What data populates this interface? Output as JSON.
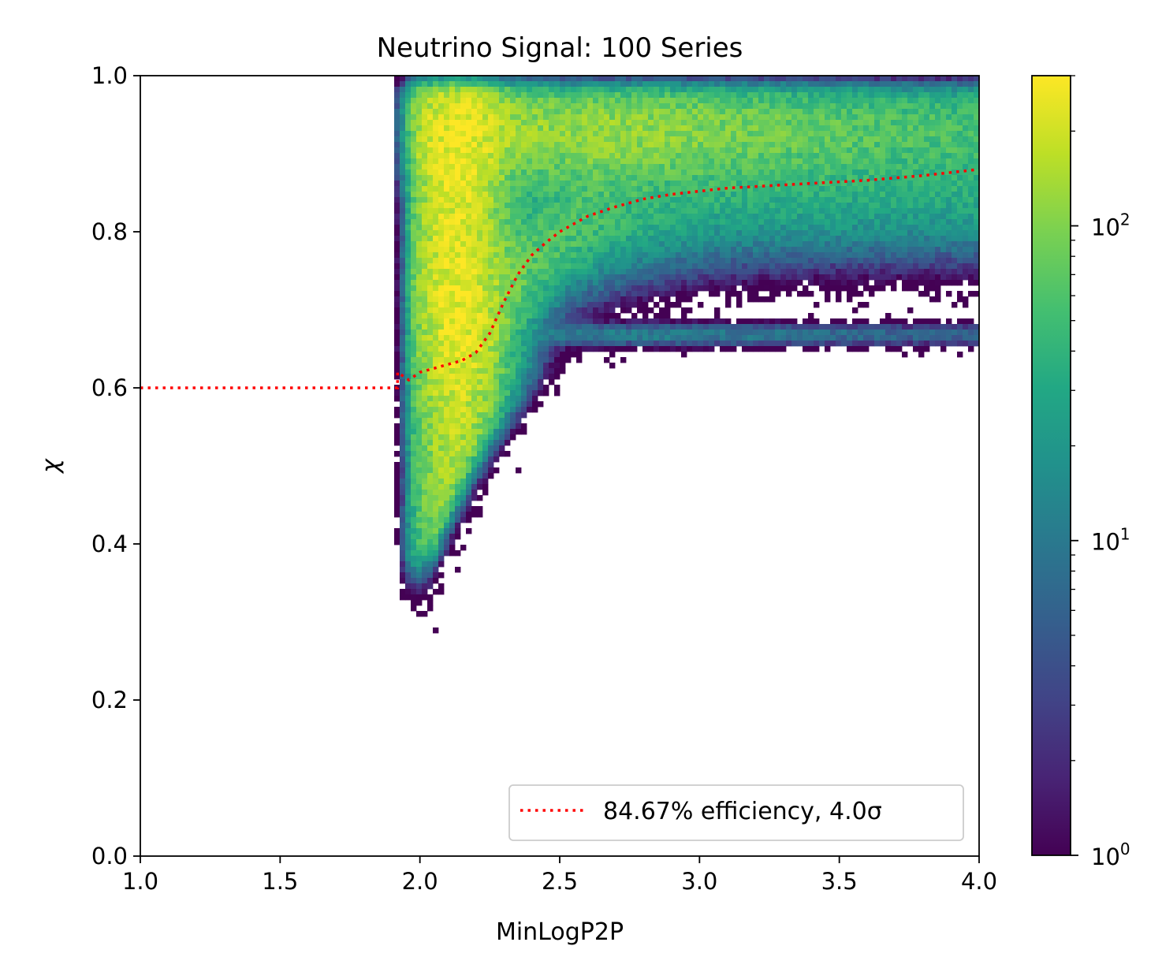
{
  "chart_data": {
    "type": "heatmap",
    "title": "Neutrino Signal: 100 Series",
    "xlabel": "MinLogP2P",
    "ylabel": "χ",
    "xlim": [
      1.0,
      4.0
    ],
    "ylim": [
      0.0,
      1.0
    ],
    "x_ticks": [
      1.0,
      1.5,
      2.0,
      2.5,
      3.0,
      3.5,
      4.0
    ],
    "x_tick_labels": [
      "1.0",
      "1.5",
      "2.0",
      "2.5",
      "3.0",
      "3.5",
      "4.0"
    ],
    "y_ticks": [
      0.0,
      0.2,
      0.4,
      0.6,
      0.8,
      1.0
    ],
    "y_tick_labels": [
      "0.0",
      "0.2",
      "0.4",
      "0.6",
      "0.8",
      "1.0"
    ],
    "colorbar": {
      "scale": "log",
      "range": [
        1,
        300
      ],
      "colormap": "viridis",
      "major_ticks": [
        1,
        10,
        100
      ],
      "major_tick_base": [
        "10",
        "10",
        "10"
      ],
      "major_tick_exp": [
        "0",
        "1",
        "2"
      ],
      "minor_ticks": [
        2,
        3,
        4,
        5,
        6,
        7,
        8,
        9,
        20,
        30,
        40,
        50,
        60,
        70,
        80,
        90,
        200,
        300
      ]
    },
    "density_regions": [
      {
        "name": "main-vertical-band",
        "x_range": [
          1.93,
          2.5
        ],
        "y_range": [
          0.38,
          0.98
        ],
        "peak_count": 250,
        "peak_at": [
          2.12,
          0.74
        ]
      },
      {
        "name": "upper-band",
        "x_range": [
          2.0,
          4.0
        ],
        "y_range": [
          0.85,
          1.0
        ],
        "peak_count": 120
      },
      {
        "name": "middle-band",
        "x_range": [
          2.4,
          4.0
        ],
        "y_range": [
          0.78,
          0.9
        ],
        "peak_count": 25
      },
      {
        "name": "lower-band",
        "x_range": [
          2.35,
          4.0
        ],
        "y_range": [
          0.64,
          0.7
        ],
        "peak_count": 12
      }
    ],
    "series": [
      {
        "name": "84.67% efficiency, 4.0σ",
        "style": "dotted",
        "color": "#ff0000",
        "x": [
          1.0,
          1.5,
          1.9,
          1.92,
          1.92,
          1.96,
          2.0,
          2.05,
          2.1,
          2.15,
          2.2,
          2.25,
          2.3,
          2.35,
          2.4,
          2.45,
          2.5,
          2.55,
          2.6,
          2.7,
          2.8,
          2.9,
          3.0,
          3.1,
          3.2,
          3.4,
          3.6,
          3.8,
          4.0
        ],
        "y": [
          0.6,
          0.6,
          0.6,
          0.6,
          0.62,
          0.61,
          0.62,
          0.625,
          0.63,
          0.635,
          0.645,
          0.67,
          0.71,
          0.745,
          0.77,
          0.786,
          0.8,
          0.81,
          0.82,
          0.832,
          0.842,
          0.848,
          0.852,
          0.856,
          0.858,
          0.862,
          0.866,
          0.872,
          0.88
        ]
      }
    ],
    "legend": {
      "position": "lower-right",
      "entries": [
        "84.67% efficiency, 4.0σ"
      ]
    }
  }
}
